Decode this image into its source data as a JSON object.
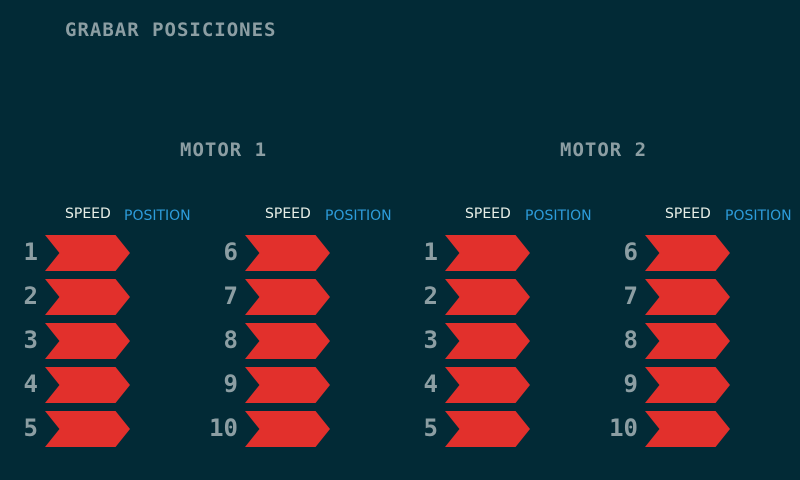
{
  "page_title": "GRABAR POSICIONES",
  "motors": [
    {
      "title": "MOTOR 1",
      "columns": [
        {
          "speed_label": "SPEED",
          "position_label": "POSITION",
          "slots": [
            "1",
            "2",
            "3",
            "4",
            "5"
          ]
        },
        {
          "speed_label": "SPEED",
          "position_label": "POSITION",
          "slots": [
            "6",
            "7",
            "8",
            "9",
            "10"
          ]
        }
      ]
    },
    {
      "title": "MOTOR 2",
      "columns": [
        {
          "speed_label": "SPEED",
          "position_label": "POSITION",
          "slots": [
            "1",
            "2",
            "3",
            "4",
            "5"
          ]
        },
        {
          "speed_label": "SPEED",
          "position_label": "POSITION",
          "slots": [
            "6",
            "7",
            "8",
            "9",
            "10"
          ]
        }
      ]
    }
  ],
  "colors": {
    "background": "#022a36",
    "chevron": "#e2302c",
    "muted_text": "#8c9ea3",
    "speed_label": "#e9f0e8",
    "position_label": "#2d9cdb"
  },
  "icons": {
    "slot_button": "chevron-right-icon"
  }
}
